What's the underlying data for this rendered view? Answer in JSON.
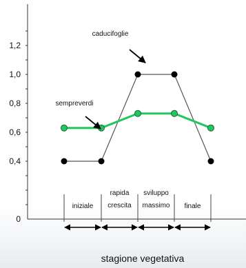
{
  "chart_data": {
    "type": "line",
    "title": "",
    "xlabel": "stagione vegetativa",
    "ylabel": "",
    "ylim": [
      0,
      1.3
    ],
    "yticks": [
      {
        "value": 0,
        "label": "0"
      },
      {
        "value": 0.4,
        "label": "0,4"
      },
      {
        "value": 0.6,
        "label": "0,6"
      },
      {
        "value": 0.8,
        "label": "0,8"
      },
      {
        "value": 1.0,
        "label": "1,0"
      },
      {
        "value": 1.2,
        "label": "1,2"
      }
    ],
    "stages": [
      {
        "lines": [
          "iniziale"
        ]
      },
      {
        "lines": [
          "rapida",
          "crescita"
        ]
      },
      {
        "lines": [
          "sviluppo",
          "massimo"
        ]
      },
      {
        "lines": [
          "finale"
        ]
      }
    ],
    "x": [
      0,
      1,
      2,
      3,
      4
    ],
    "series": [
      {
        "name": "caducifoglie",
        "color": "#000000",
        "values": [
          0.4,
          0.4,
          1.0,
          1.0,
          0.4
        ]
      },
      {
        "name": "sempreverdi",
        "color": "#22c55e",
        "values": [
          0.63,
          0.63,
          0.73,
          0.73,
          0.63
        ]
      }
    ],
    "grid": false,
    "legend": "none"
  }
}
